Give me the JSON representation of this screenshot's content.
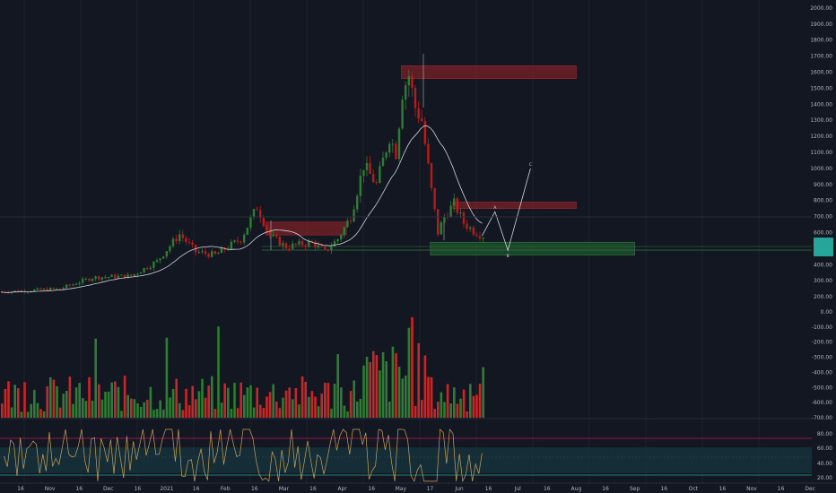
{
  "chart_data": [
    {
      "type": "candlestick",
      "role": "price",
      "yaxis_ticks": [
        "2000.00",
        "1900.00",
        "1800.00",
        "1700.00",
        "1600.00",
        "1500.00",
        "1400.00",
        "1300.00",
        "1200.00",
        "1100.00",
        "1000.00",
        "900.00",
        "800.00",
        "700.00",
        "600.00",
        "500.00",
        "400.00",
        "300.00",
        "200.00"
      ],
      "ylim": [
        150,
        2050
      ],
      "scale": "linear",
      "last_price_label": "",
      "price_anchors": [
        {
          "i": 0,
          "v": 230
        },
        {
          "i": 18,
          "v": 250
        },
        {
          "i": 28,
          "v": 320
        },
        {
          "i": 40,
          "v": 330
        },
        {
          "i": 48,
          "v": 420
        },
        {
          "i": 55,
          "v": 590
        },
        {
          "i": 60,
          "v": 480
        },
        {
          "i": 66,
          "v": 460
        },
        {
          "i": 74,
          "v": 560
        },
        {
          "i": 79,
          "v": 760
        },
        {
          "i": 83,
          "v": 580
        },
        {
          "i": 88,
          "v": 510
        },
        {
          "i": 96,
          "v": 540
        },
        {
          "i": 100,
          "v": 480
        },
        {
          "i": 104,
          "v": 560
        },
        {
          "i": 108,
          "v": 700
        },
        {
          "i": 112,
          "v": 1020
        },
        {
          "i": 116,
          "v": 900
        },
        {
          "i": 120,
          "v": 1200
        },
        {
          "i": 122,
          "v": 1100
        },
        {
          "i": 124,
          "v": 1480
        },
        {
          "i": 126,
          "v": 1580
        },
        {
          "i": 128,
          "v": 1380
        },
        {
          "i": 130,
          "v": 1300
        },
        {
          "i": 133,
          "v": 860
        },
        {
          "i": 135,
          "v": 600
        },
        {
          "i": 137,
          "v": 700
        },
        {
          "i": 140,
          "v": 780
        },
        {
          "i": 143,
          "v": 660
        },
        {
          "i": 146,
          "v": 610
        },
        {
          "i": 149,
          "v": 580
        }
      ],
      "candle_count": 150,
      "zones": [
        {
          "kind": "supply",
          "from_i": 124,
          "to_date": "Aug",
          "low": 1560,
          "high": 1640
        },
        {
          "kind": "supply",
          "from_i": 82,
          "to_i": 107,
          "low": 585,
          "high": 665
        },
        {
          "kind": "supply",
          "from_i": 140,
          "to_date": "Aug",
          "low": 750,
          "high": 790
        },
        {
          "kind": "demand",
          "from_i": 133,
          "to_date": "Sep",
          "low": 460,
          "high": 540
        }
      ],
      "projection": {
        "labels": [
          "A",
          "B",
          "C"
        ],
        "points": [
          {
            "i": 149,
            "v": 580
          },
          {
            "i": 153,
            "v": 730
          },
          {
            "i": 157,
            "v": 490
          },
          {
            "i": 164,
            "v": 1000
          }
        ]
      }
    },
    {
      "type": "bar",
      "role": "volume",
      "yaxis_ticks": [
        "0.00",
        "-100.00",
        "-200.00",
        "-300.00",
        "-400.00",
        "-500.00",
        "-600.00",
        "-700.00"
      ],
      "ylim": [
        -700,
        0
      ]
    },
    {
      "type": "line",
      "role": "rsi",
      "yaxis_ticks": [
        "80.00",
        "60.00",
        "40.00",
        "20.00"
      ],
      "ylim": [
        20,
        80
      ],
      "bands": [
        30,
        50,
        70
      ]
    }
  ],
  "time_axis": {
    "labels": [
      "16",
      "Nov",
      "16",
      "Dec",
      "16",
      "2021",
      "16",
      "Feb",
      "16",
      "Mar",
      "16",
      "Apr",
      "16",
      "May",
      "17",
      "Jun",
      "16",
      "Jul",
      "16",
      "Aug",
      "16",
      "Sep",
      "16",
      "Oct",
      "16",
      "Nov",
      "16",
      "Dec"
    ]
  },
  "colors": {
    "background": "#131722",
    "up": "#26a69a",
    "up_candle": "#2e7d32",
    "down": "#b71c1c",
    "volume_up": "#2e7d32",
    "volume_down": "#c62828",
    "supply_zone": "#6d1f24",
    "demand_zone": "#1d4d2a",
    "ma": "#d1d4dc",
    "rsi_line": "#c8a35a",
    "rsi_band": "#16303a"
  }
}
